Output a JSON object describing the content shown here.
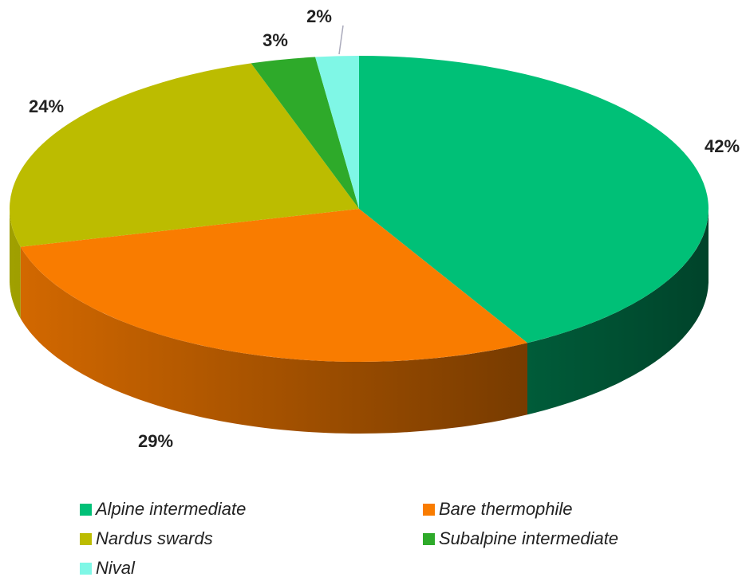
{
  "chart_data": {
    "type": "pie3d",
    "categories": [
      "Alpine intermediate",
      "Bare thermophile",
      "Nardus swards",
      "Subalpine intermediate",
      "Nival"
    ],
    "values": [
      42,
      29,
      24,
      3,
      2
    ],
    "value_labels": [
      "42%",
      "29%",
      "24%",
      "3%",
      "2%"
    ],
    "colors": [
      "#00c077",
      "#f97c00",
      "#bcbc00",
      "#2eaa2a",
      "#7ff7e6"
    ]
  }
}
